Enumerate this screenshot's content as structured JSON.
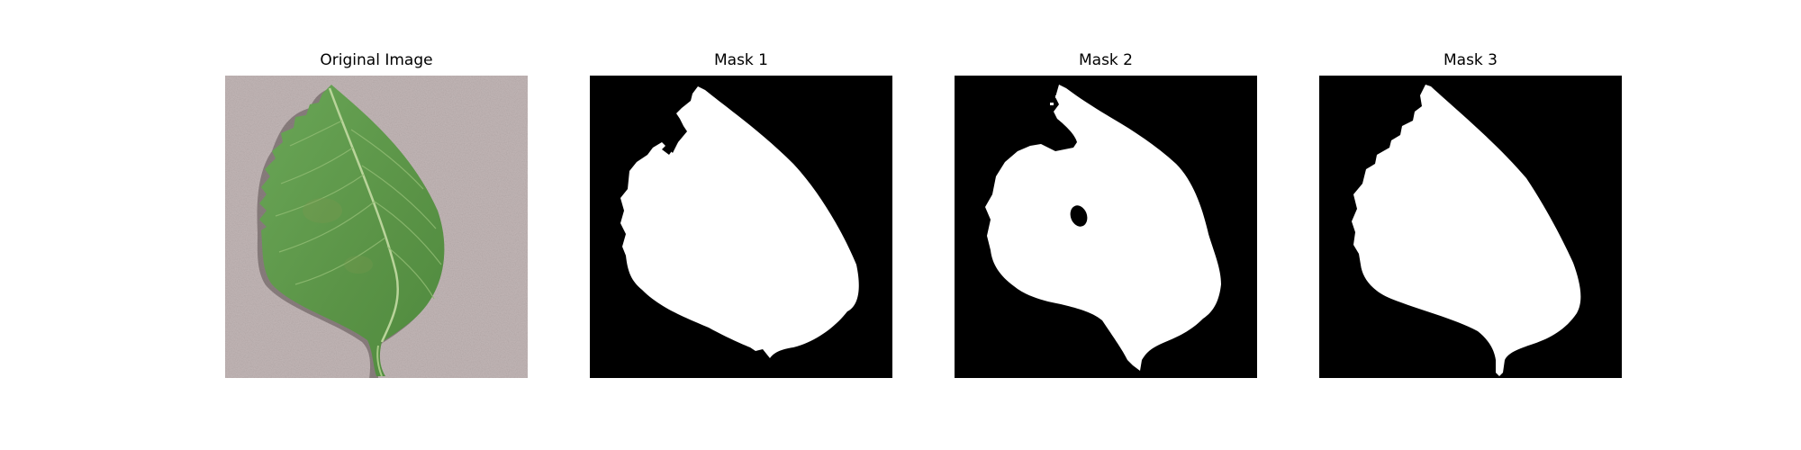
{
  "figure": {
    "panels": [
      {
        "title": "Original Image"
      },
      {
        "title": "Mask 1"
      },
      {
        "title": "Mask 2"
      },
      {
        "title": "Mask 3"
      }
    ]
  },
  "colors": {
    "background": "#ffffff",
    "mask_background": "#000000",
    "mask_foreground": "#ffffff",
    "leaf_green": "#5f9a4a",
    "surface_gray": "#c2b6b6"
  }
}
